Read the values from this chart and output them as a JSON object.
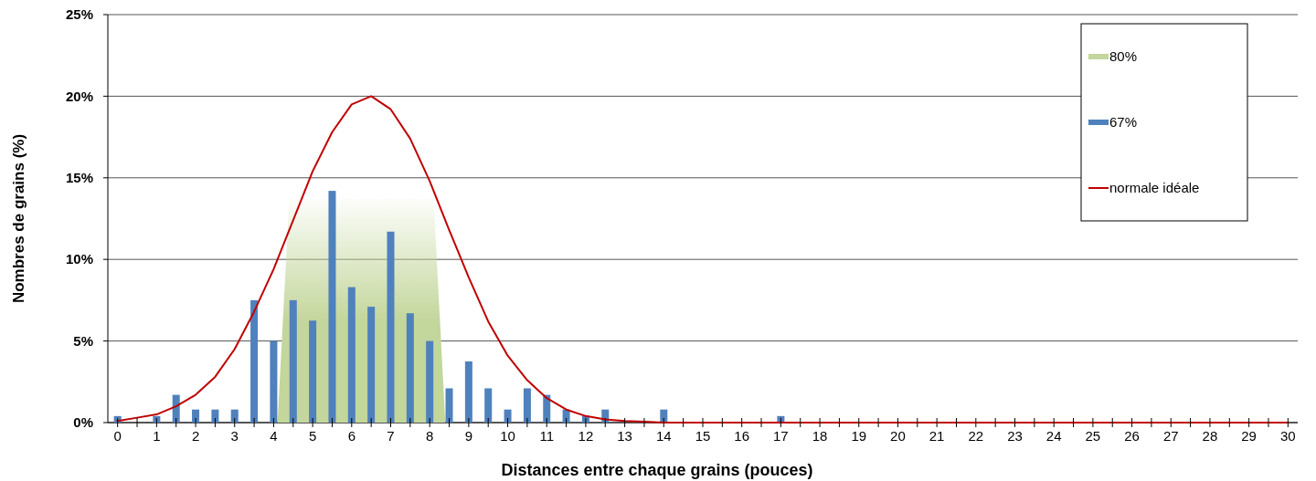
{
  "chart_data": {
    "type": "bar",
    "xlabel": "Distances entre chaque grains (pouces)",
    "ylabel": "Nombres de grains (%)",
    "xlim": [
      -0.25,
      30.25
    ],
    "ylim": [
      0,
      25
    ],
    "yticks": [
      {
        "value": 0,
        "label": "0%"
      },
      {
        "value": 5,
        "label": "5%"
      },
      {
        "value": 10,
        "label": "10%"
      },
      {
        "value": 15,
        "label": "15%"
      },
      {
        "value": 20,
        "label": "20%"
      },
      {
        "value": 25,
        "label": "25%"
      }
    ],
    "xticks": [
      0,
      {
        "value": 0.5,
        "label": null
      },
      1,
      {
        "value": 1.5,
        "label": null
      },
      2,
      {
        "value": 2.5,
        "label": null
      },
      3,
      {
        "value": 3.5,
        "label": null
      },
      4,
      {
        "value": 4.5,
        "label": null
      },
      5,
      {
        "value": 5.5,
        "label": null
      },
      6,
      {
        "value": 6.5,
        "label": null
      },
      7,
      {
        "value": 7.5,
        "label": null
      },
      8,
      {
        "value": 8.5,
        "label": null
      },
      9,
      {
        "value": 9.5,
        "label": null
      },
      10,
      {
        "value": 10.5,
        "label": null
      },
      11,
      {
        "value": 11.5,
        "label": null
      },
      12,
      {
        "value": 12.5,
        "label": null
      },
      13,
      {
        "value": 13.5,
        "label": null
      },
      14,
      {
        "value": 14.5,
        "label": null
      },
      15,
      {
        "value": 15.5,
        "label": null
      },
      16,
      {
        "value": 16.5,
        "label": null
      },
      17,
      {
        "value": 17.5,
        "label": null
      },
      18,
      {
        "value": 18.5,
        "label": null
      },
      19,
      {
        "value": 19.5,
        "label": null
      },
      20,
      {
        "value": 20.5,
        "label": null
      },
      21,
      {
        "value": 21.5,
        "label": null
      },
      22,
      {
        "value": 22.5,
        "label": null
      },
      23,
      {
        "value": 23.5,
        "label": null
      },
      24,
      {
        "value": 24.5,
        "label": null
      },
      25,
      {
        "value": 25.5,
        "label": null
      },
      26,
      {
        "value": 26.5,
        "label": null
      },
      27,
      {
        "value": 27.5,
        "label": null
      },
      28,
      {
        "value": 28.5,
        "label": null
      },
      29,
      {
        "value": 29.5,
        "label": null
      },
      30
    ],
    "grid": "y",
    "legend": "top right",
    "series": [
      {
        "name": "80%",
        "type": "area",
        "color": "#c3d69b",
        "x": [
          4.1,
          4.4,
          8.1,
          8.4
        ],
        "values": [
          0,
          13.7,
          13.7,
          0
        ]
      },
      {
        "name": "67%",
        "color": "#4f81bd",
        "x": [
          0,
          1,
          1.5,
          2,
          2.5,
          3,
          3.5,
          4,
          4.5,
          5,
          5.5,
          6,
          6.5,
          7,
          7.5,
          8,
          8.5,
          9,
          9.5,
          10,
          10.5,
          11,
          11.5,
          12,
          12.5,
          14,
          17
        ],
        "values": [
          0.4,
          0.4,
          1.7,
          0.8,
          0.8,
          0.8,
          7.5,
          5,
          7.5,
          6.25,
          14.2,
          8.3,
          7.1,
          11.7,
          6.7,
          5,
          2.1,
          3.75,
          2.1,
          0.8,
          2.1,
          1.7,
          0.8,
          0.4,
          0.8,
          0.8,
          0.4
        ]
      },
      {
        "name": "normale idéale",
        "type": "line",
        "color": "#c00000",
        "x": [
          0,
          0.5,
          1,
          1.5,
          2,
          2.5,
          3,
          3.5,
          4,
          4.5,
          5,
          5.5,
          6,
          6.5,
          7,
          7.5,
          8,
          8.5,
          9,
          9.5,
          10,
          10.5,
          11,
          11.5,
          12,
          12.5,
          13,
          13.5,
          14,
          15,
          20,
          25,
          30
        ],
        "values": [
          0.1,
          0.3,
          0.5,
          1,
          1.7,
          2.8,
          4.5,
          6.8,
          9.4,
          12.4,
          15.4,
          17.8,
          19.5,
          20,
          19.2,
          17.4,
          14.8,
          11.8,
          8.9,
          6.2,
          4.1,
          2.6,
          1.5,
          0.8,
          0.4,
          0.2,
          0.1,
          0.05,
          0,
          0,
          0,
          0,
          0
        ]
      }
    ]
  }
}
